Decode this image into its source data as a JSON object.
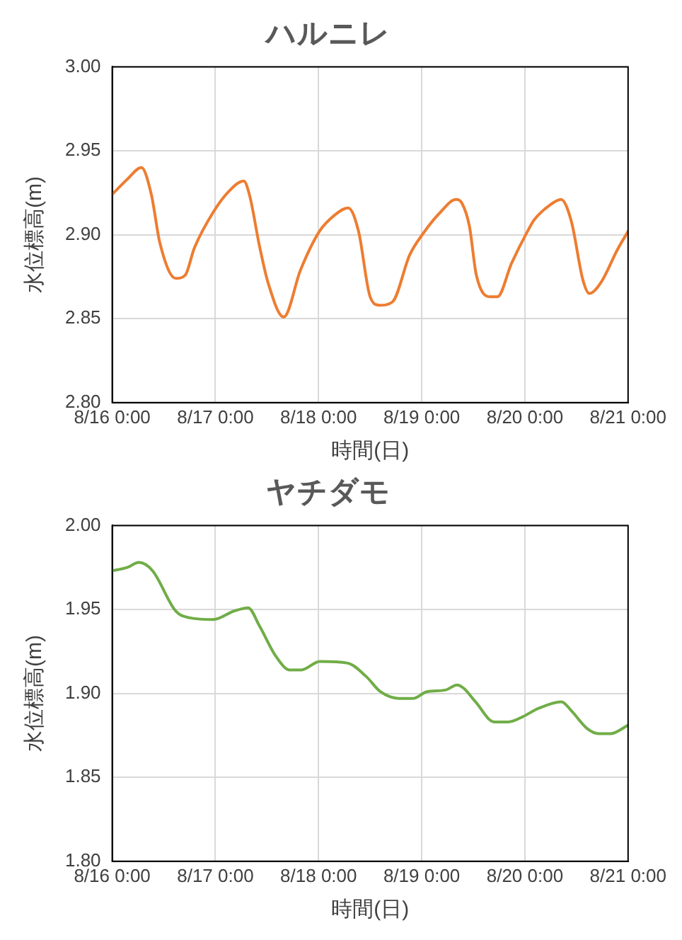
{
  "chart_data": [
    {
      "type": "line",
      "title": "ハルニレ",
      "xlabel": "時間(日)",
      "ylabel": "水位標高(m)",
      "xlim": [
        "--08-16T00:00",
        "--08-21T00:00"
      ],
      "xticks": [
        {
          "value": "--08-16T00:00",
          "label": "8/16 0:00"
        },
        {
          "value": "--08-17T00:00",
          "label": "8/17 0:00"
        },
        {
          "value": "--08-18T00:00",
          "label": "8/18 0:00"
        },
        {
          "value": "--08-19T00:00",
          "label": "8/19 0:00"
        },
        {
          "value": "--08-20T00:00",
          "label": "8/20 0:00"
        },
        {
          "value": "--08-21T00:00",
          "label": "8/21 0:00"
        }
      ],
      "ylim": [
        2.8,
        3.0
      ],
      "yticks": [
        {
          "value": 2.8,
          "label": "2.80"
        },
        {
          "value": 2.85,
          "label": "2.85"
        },
        {
          "value": 2.9,
          "label": "2.90"
        },
        {
          "value": 2.95,
          "label": "2.95"
        },
        {
          "value": 3.0,
          "label": "3.00"
        }
      ],
      "grid": true,
      "legend": false,
      "marker": "none",
      "line_style": "solid",
      "series": [
        {
          "color": "#ed7d31",
          "x": [
            "--08-16T00:00",
            "--08-16T03:30",
            "--08-16T06:48",
            "--08-16T09:06",
            "--08-16T11:06",
            "--08-16T14:48",
            "--08-16T17:00",
            "--08-16T19:06",
            "--08-16T23:24",
            "--08-17T03:12",
            "--08-17T06:36",
            "--08-17T08:00",
            "--08-17T10:12",
            "--08-17T12:18",
            "--08-17T15:54",
            "--08-17T19:48",
            "--08-18T00:12",
            "--08-18T03:54",
            "--08-18T06:54",
            "--08-18T09:18",
            "--08-18T12:00",
            "--08-18T14:12",
            "--08-18T17:12",
            "--08-18T21:12",
            "--08-19T00:24",
            "--08-19T04:12",
            "--08-19T08:00",
            "--08-19T09:18",
            "--08-19T11:06",
            "--08-19T12:42",
            "--08-19T16:00",
            "--08-19T17:36",
            "--08-19T20:54",
            "--08-20T00:36",
            "--08-20T02:12",
            "--08-20T06:00",
            "--08-20T08:24",
            "--08-20T10:48",
            "--08-20T13:30",
            "--08-20T15:00",
            "--08-20T17:48",
            "--08-20T21:30",
            "--08-21T00:00"
          ],
          "values": [
            2.924,
            2.933,
            2.94,
            2.924,
            2.895,
            2.874,
            2.876,
            2.892,
            2.913,
            2.926,
            2.932,
            2.923,
            2.894,
            2.871,
            2.851,
            2.879,
            2.902,
            2.912,
            2.916,
            2.902,
            2.863,
            2.858,
            2.86,
            2.888,
            2.901,
            2.913,
            2.921,
            2.919,
            2.905,
            2.876,
            2.863,
            2.863,
            2.883,
            2.902,
            2.909,
            2.918,
            2.921,
            2.908,
            2.873,
            2.865,
            2.872,
            2.891,
            2.902
          ]
        }
      ]
    },
    {
      "type": "line",
      "title": "ヤチダモ",
      "xlabel": "時間(日)",
      "ylabel": "水位標高(m)",
      "xlim": [
        "--08-16T00:00",
        "--08-21T00:00"
      ],
      "xticks": [
        {
          "value": "--08-16T00:00",
          "label": "8/16 0:00"
        },
        {
          "value": "--08-17T00:00",
          "label": "8/17 0:00"
        },
        {
          "value": "--08-18T00:00",
          "label": "8/18 0:00"
        },
        {
          "value": "--08-19T00:00",
          "label": "8/19 0:00"
        },
        {
          "value": "--08-20T00:00",
          "label": "8/20 0:00"
        },
        {
          "value": "--08-21T00:00",
          "label": "8/21 0:00"
        }
      ],
      "ylim": [
        1.8,
        2.0
      ],
      "yticks": [
        {
          "value": 1.8,
          "label": "1.80"
        },
        {
          "value": 1.85,
          "label": "1.85"
        },
        {
          "value": 1.9,
          "label": "1.90"
        },
        {
          "value": 1.95,
          "label": "1.95"
        },
        {
          "value": 2.0,
          "label": "2.00"
        }
      ],
      "grid": true,
      "legend": false,
      "marker": "none",
      "line_style": "solid",
      "series": [
        {
          "color": "#70ad47",
          "x": [
            "--08-16T00:00",
            "--08-16T03:30",
            "--08-16T06:12",
            "--08-16T09:24",
            "--08-16T14:48",
            "--08-16T18:06",
            "--08-16T23:30",
            "--08-17T04:18",
            "--08-17T07:36",
            "--08-17T10:18",
            "--08-17T14:06",
            "--08-17T17:18",
            "--08-17T20:00",
            "--08-18T00:18",
            "--08-18T06:48",
            "--08-18T11:06",
            "--08-18T14:24",
            "--08-18T18:42",
            "--08-18T22:00",
            "--08-19T01:12",
            "--08-19T05:30",
            "--08-19T08:12",
            "--08-19T09:48",
            "--08-19T12:30",
            "--08-19T16:54",
            "--08-19T20:06",
            "--08-19T23:24",
            "--08-20T03:06",
            "--08-20T08:30",
            "--08-20T10:42",
            "--08-20T14:30",
            "--08-20T17:12",
            "--08-20T19:54",
            "--08-21T00:00"
          ],
          "values": [
            1.973,
            1.975,
            1.978,
            1.973,
            1.949,
            1.945,
            1.944,
            1.949,
            1.951,
            1.94,
            1.922,
            1.914,
            1.914,
            1.919,
            1.918,
            1.91,
            1.901,
            1.897,
            1.897,
            1.901,
            1.902,
            1.905,
            1.903,
            1.895,
            1.883,
            1.883,
            1.886,
            1.891,
            1.895,
            1.89,
            1.879,
            1.876,
            1.876,
            1.881
          ]
        }
      ]
    }
  ]
}
